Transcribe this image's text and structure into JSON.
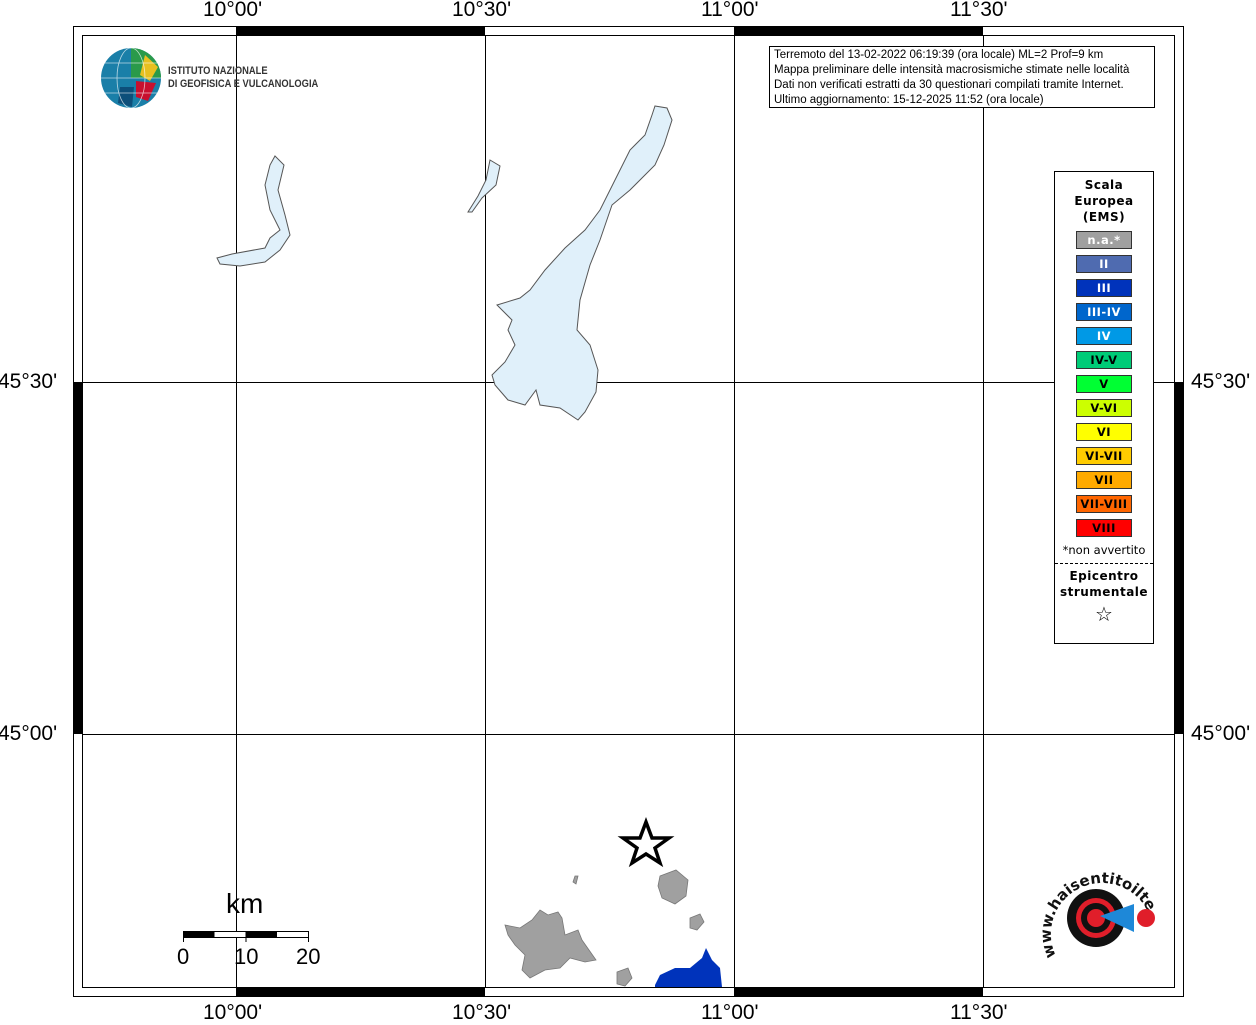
{
  "map": {
    "lon_ticks": [
      "10°00'",
      "10°30'",
      "11°00'",
      "11°30'"
    ],
    "lat_ticks": [
      "45°30'",
      "45°00'"
    ],
    "water_color": "#e0f0fa",
    "urban_color": "#a0a0a0"
  },
  "logo": {
    "line1": "ISTITUTO NAZIONALE",
    "line2": "DI GEOFISICA E VULCANOLOGIA"
  },
  "info": {
    "lines": [
      "Terremoto del 13-02-2022 06:19:39 (ora locale) ML=2 Prof=9 km",
      "Mappa preliminare delle intensità macrosismiche stimate nelle località",
      "Dati non verificati estratti da 30 questionari compilati tramite Internet.",
      "Ultimo aggiornamento: 15-12-2025 11:52 (ora locale)"
    ]
  },
  "legend": {
    "title": [
      "Scala",
      "Europea",
      "(EMS)"
    ],
    "items": [
      {
        "label": "n.a.*",
        "color": "#a0a0a0",
        "text": "#ffffff"
      },
      {
        "label": "II",
        "color": "#4f6bb0",
        "text": "#ffffff"
      },
      {
        "label": "III",
        "color": "#0033bb",
        "text": "#ffffff"
      },
      {
        "label": "III-IV",
        "color": "#0066cc",
        "text": "#ffffff"
      },
      {
        "label": "IV",
        "color": "#0099e6",
        "text": "#ffffff"
      },
      {
        "label": "IV-V",
        "color": "#00cc77",
        "text": "#000000"
      },
      {
        "label": "V",
        "color": "#00ff33",
        "text": "#000000"
      },
      {
        "label": "V-VI",
        "color": "#ccff00",
        "text": "#000000"
      },
      {
        "label": "VI",
        "color": "#ffff00",
        "text": "#000000"
      },
      {
        "label": "VI-VII",
        "color": "#ffcc00",
        "text": "#000000"
      },
      {
        "label": "VII",
        "color": "#ffaa00",
        "text": "#000000"
      },
      {
        "label": "VII-VIII",
        "color": "#ff6600",
        "text": "#000000"
      },
      {
        "label": "VIII",
        "color": "#ff0000",
        "text": "#000000"
      }
    ],
    "note": "*non avvertito",
    "epicenter": [
      "Epicentro",
      "strumentale"
    ]
  },
  "scalebar": {
    "unit": "km",
    "labels": [
      "0",
      "10",
      "20"
    ]
  },
  "hst_logo": {
    "text": "www.haisentitoilterremoto.it"
  }
}
